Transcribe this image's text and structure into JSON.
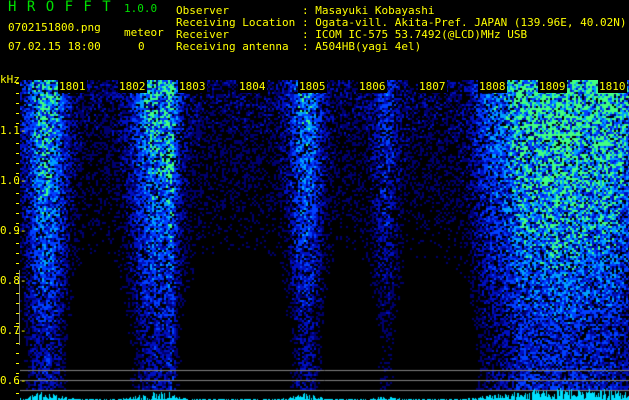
{
  "header": {
    "app_title": "H R O F F T",
    "version": "1.0.0",
    "filename": "0702151800.png",
    "datetime": "07.02.15 18:00",
    "meteor_label": "meteor",
    "meteor_count": "0"
  },
  "info": [
    {
      "label": "Observer",
      "value": "Masayuki Kobayashi"
    },
    {
      "label": "Receiving Location",
      "value": "Ogata-vill. Akita-Pref. JAPAN (139.96E, 40.02N)"
    },
    {
      "label": "Receiver",
      "value": "ICOM IC-575 53.7492(@LCD)MHz USB"
    },
    {
      "label": "Receiving antenna",
      "value": "A504HB(yagi 4el)"
    }
  ],
  "chart_data": {
    "type": "heatmap",
    "ylabel": "kHz",
    "y_ticks": [
      "1.1",
      "1.0",
      "0.9",
      "0.8",
      "0.7",
      "0.6"
    ],
    "x_ticks": [
      "1801",
      "1802",
      "1803",
      "1804",
      "1805",
      "1806",
      "1807",
      "1808",
      "1809",
      "1810"
    ],
    "colors": {
      "text": "#ffff00",
      "title": "#00e000",
      "signal_low": "#0000c0",
      "signal_high": "#00ff80",
      "histogram": "#00e0ff"
    }
  }
}
